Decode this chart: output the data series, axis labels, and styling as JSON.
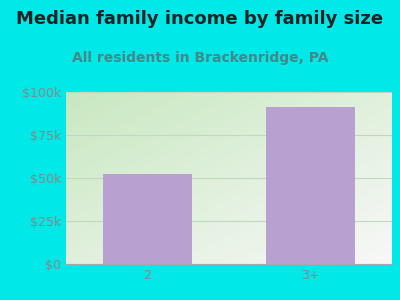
{
  "title": "Median family income by family size",
  "subtitle": "All residents in Brackenridge, PA",
  "categories": [
    "2",
    "3+"
  ],
  "values": [
    52000,
    91000
  ],
  "bar_color": "#b8a0d0",
  "background_color": "#00e8e8",
  "plot_bg_color_topleft": "#c8e8c0",
  "plot_bg_color_bottomright": "#f0f8f0",
  "title_color": "#222222",
  "subtitle_color": "#448888",
  "tick_label_color": "#888888",
  "ylim": [
    0,
    100000
  ],
  "yticks": [
    0,
    25000,
    50000,
    75000,
    100000
  ],
  "ytick_labels": [
    "$0",
    "$25k",
    "$50k",
    "$75k",
    "$100k"
  ],
  "title_fontsize": 13,
  "subtitle_fontsize": 10,
  "tick_fontsize": 9,
  "grid_color": "#c0d8c0",
  "figsize": [
    4.0,
    3.0
  ],
  "dpi": 100
}
